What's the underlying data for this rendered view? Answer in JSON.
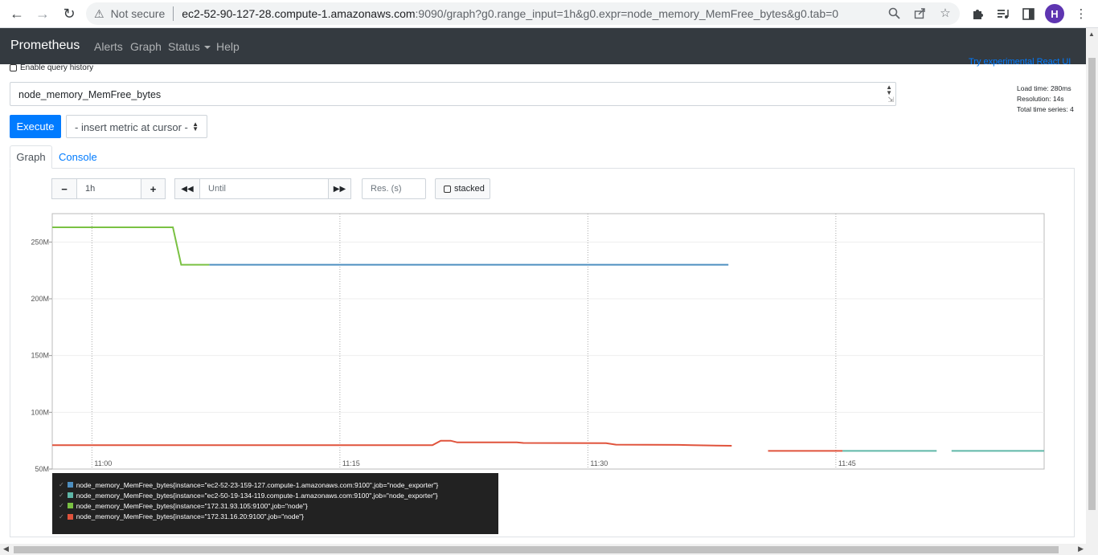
{
  "browser": {
    "not_secure": "Not secure",
    "url_host": "ec2-52-90-127-28.compute-1.amazonaws.com",
    "url_path": ":9090/graph?g0.range_input=1h&g0.expr=node_memory_MemFree_bytes&g0.tab=0",
    "profile_initial": "H"
  },
  "navbar": {
    "brand": "Prometheus",
    "links": [
      "Alerts",
      "Graph",
      "Status",
      "Help"
    ]
  },
  "query": {
    "history_label": "Enable query history",
    "experimental_link": "Try experimental React UI",
    "expression": "node_memory_MemFree_bytes",
    "execute_label": "Execute",
    "insert_metric": "- insert metric at cursor -",
    "stats": {
      "load_time": "Load time: 280ms",
      "resolution": "Resolution: 14s",
      "total_series": "Total time series: 4"
    }
  },
  "tabs": {
    "graph": "Graph",
    "console": "Console"
  },
  "controls": {
    "range": "1h",
    "until_placeholder": "Until",
    "res_placeholder": "Res. (s)",
    "stacked_label": "stacked"
  },
  "chart_data": {
    "type": "line",
    "y_unit": "bytes",
    "ylim": [
      50000000,
      275000000
    ],
    "y_ticks": [
      "50M",
      "100M",
      "150M",
      "200M",
      "250M"
    ],
    "y_tick_values": [
      50000000,
      100000000,
      150000000,
      200000000,
      250000000
    ],
    "x_ticks": [
      "11:00",
      "11:15",
      "11:30",
      "11:45"
    ],
    "x_tick_minutes": [
      0,
      15,
      30,
      45
    ],
    "x_range_minutes": [
      -2.4,
      57.6
    ],
    "grid": true,
    "series": [
      {
        "name": "node_memory_MemFree_bytes{instance=\"ec2-52-23-159-127.compute-1.amazonaws.com:9100\",job=\"node_exporter\"}",
        "color": "#4e8fc0",
        "segments": [
          [
            [
              7.1,
              230000000
            ],
            [
              38.5,
              230000000
            ]
          ]
        ]
      },
      {
        "name": "node_memory_MemFree_bytes{instance=\"ec2-50-19-134-119.compute-1.amazonaws.com:9100\",job=\"node_exporter\"}",
        "color": "#5fb7a8",
        "segments": [
          [
            [
              45.4,
              66000000
            ],
            [
              51.1,
              66000000
            ]
          ],
          [
            [
              52.0,
              66000000
            ],
            [
              57.6,
              66000000
            ]
          ]
        ]
      },
      {
        "name": "node_memory_MemFree_bytes{instance=\"172.31.93.105:9100\",job=\"node\"}",
        "color": "#7ac143",
        "segments": [
          [
            [
              -2.4,
              263000000
            ],
            [
              4.9,
              263000000
            ],
            [
              5.4,
              230000000
            ],
            [
              7.1,
              230000000
            ]
          ]
        ]
      },
      {
        "name": "node_memory_MemFree_bytes{instance=\"172.31.16.20:9100\",job=\"node\"}",
        "color": "#e0533c",
        "segments": [
          [
            [
              -2.4,
              71000000
            ],
            [
              20.6,
              71000000
            ],
            [
              21.1,
              75000000
            ],
            [
              21.7,
              75000000
            ],
            [
              22.1,
              73500000
            ],
            [
              25.7,
              73500000
            ],
            [
              26.1,
              73000000
            ],
            [
              31.1,
              72800000
            ],
            [
              31.7,
              71500000
            ],
            [
              35.5,
              71300000
            ],
            [
              36.3,
              71000000
            ],
            [
              38.7,
              70500000
            ]
          ],
          [
            [
              40.9,
              66000000
            ],
            [
              45.4,
              66000000
            ]
          ]
        ]
      }
    ]
  }
}
